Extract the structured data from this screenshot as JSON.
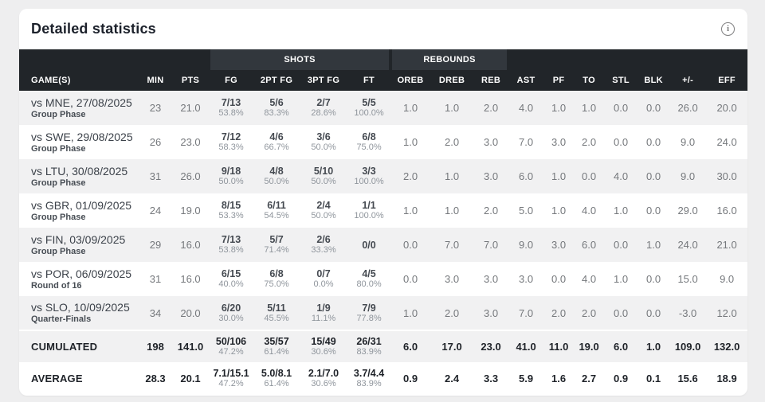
{
  "header": {
    "title": "Detailed statistics",
    "info_icon_glyph": "i"
  },
  "table": {
    "groups": {
      "shots": "SHOTS",
      "rebounds": "REBOUNDS"
    },
    "columns": {
      "games": "GAME(S)",
      "min": "MIN",
      "pts": "PTS",
      "fg": "FG",
      "fg2": "2PT FG",
      "fg3": "3PT FG",
      "ft": "FT",
      "oreb": "OREB",
      "dreb": "DREB",
      "reb": "REB",
      "ast": "AST",
      "pf": "PF",
      "to": "TO",
      "stl": "STL",
      "blk": "BLK",
      "plusminus": "+/-",
      "eff": "EFF"
    },
    "rows": [
      {
        "game": "vs MNE, 27/08/2025",
        "phase": "Group Phase",
        "min": "23",
        "pts": "21.0",
        "fg": "7/13",
        "fg_pct": "53.8%",
        "fg2": "5/6",
        "fg2_pct": "83.3%",
        "fg3": "2/7",
        "fg3_pct": "28.6%",
        "ft": "5/5",
        "ft_pct": "100.0%",
        "oreb": "1.0",
        "dreb": "1.0",
        "reb": "2.0",
        "ast": "4.0",
        "pf": "1.0",
        "to": "1.0",
        "stl": "0.0",
        "blk": "0.0",
        "pm": "26.0",
        "eff": "20.0"
      },
      {
        "game": "vs SWE, 29/08/2025",
        "phase": "Group Phase",
        "min": "26",
        "pts": "23.0",
        "fg": "7/12",
        "fg_pct": "58.3%",
        "fg2": "4/6",
        "fg2_pct": "66.7%",
        "fg3": "3/6",
        "fg3_pct": "50.0%",
        "ft": "6/8",
        "ft_pct": "75.0%",
        "oreb": "1.0",
        "dreb": "2.0",
        "reb": "3.0",
        "ast": "7.0",
        "pf": "3.0",
        "to": "2.0",
        "stl": "0.0",
        "blk": "0.0",
        "pm": "9.0",
        "eff": "24.0"
      },
      {
        "game": "vs LTU, 30/08/2025",
        "phase": "Group Phase",
        "min": "31",
        "pts": "26.0",
        "fg": "9/18",
        "fg_pct": "50.0%",
        "fg2": "4/8",
        "fg2_pct": "50.0%",
        "fg3": "5/10",
        "fg3_pct": "50.0%",
        "ft": "3/3",
        "ft_pct": "100.0%",
        "oreb": "2.0",
        "dreb": "1.0",
        "reb": "3.0",
        "ast": "6.0",
        "pf": "1.0",
        "to": "0.0",
        "stl": "4.0",
        "blk": "0.0",
        "pm": "9.0",
        "eff": "30.0"
      },
      {
        "game": "vs GBR, 01/09/2025",
        "phase": "Group Phase",
        "min": "24",
        "pts": "19.0",
        "fg": "8/15",
        "fg_pct": "53.3%",
        "fg2": "6/11",
        "fg2_pct": "54.5%",
        "fg3": "2/4",
        "fg3_pct": "50.0%",
        "ft": "1/1",
        "ft_pct": "100.0%",
        "oreb": "1.0",
        "dreb": "1.0",
        "reb": "2.0",
        "ast": "5.0",
        "pf": "1.0",
        "to": "4.0",
        "stl": "1.0",
        "blk": "0.0",
        "pm": "29.0",
        "eff": "16.0"
      },
      {
        "game": "vs FIN, 03/09/2025",
        "phase": "Group Phase",
        "min": "29",
        "pts": "16.0",
        "fg": "7/13",
        "fg_pct": "53.8%",
        "fg2": "5/7",
        "fg2_pct": "71.4%",
        "fg3": "2/6",
        "fg3_pct": "33.3%",
        "ft": "0/0",
        "ft_pct": "",
        "oreb": "0.0",
        "dreb": "7.0",
        "reb": "7.0",
        "ast": "9.0",
        "pf": "3.0",
        "to": "6.0",
        "stl": "0.0",
        "blk": "1.0",
        "pm": "24.0",
        "eff": "21.0"
      },
      {
        "game": "vs POR, 06/09/2025",
        "phase": "Round of 16",
        "min": "31",
        "pts": "16.0",
        "fg": "6/15",
        "fg_pct": "40.0%",
        "fg2": "6/8",
        "fg2_pct": "75.0%",
        "fg3": "0/7",
        "fg3_pct": "0.0%",
        "ft": "4/5",
        "ft_pct": "80.0%",
        "oreb": "0.0",
        "dreb": "3.0",
        "reb": "3.0",
        "ast": "3.0",
        "pf": "0.0",
        "to": "4.0",
        "stl": "1.0",
        "blk": "0.0",
        "pm": "15.0",
        "eff": "9.0"
      },
      {
        "game": "vs SLO, 10/09/2025",
        "phase": "Quarter-Finals",
        "min": "34",
        "pts": "20.0",
        "fg": "6/20",
        "fg_pct": "30.0%",
        "fg2": "5/11",
        "fg2_pct": "45.5%",
        "fg3": "1/9",
        "fg3_pct": "11.1%",
        "ft": "7/9",
        "ft_pct": "77.8%",
        "oreb": "1.0",
        "dreb": "2.0",
        "reb": "3.0",
        "ast": "7.0",
        "pf": "2.0",
        "to": "2.0",
        "stl": "0.0",
        "blk": "0.0",
        "pm": "-3.0",
        "eff": "12.0"
      }
    ],
    "totals": [
      {
        "label": "CUMULATED",
        "min": "198",
        "pts": "141.0",
        "fg": "50/106",
        "fg_pct": "47.2%",
        "fg2": "35/57",
        "fg2_pct": "61.4%",
        "fg3": "15/49",
        "fg3_pct": "30.6%",
        "ft": "26/31",
        "ft_pct": "83.9%",
        "oreb": "6.0",
        "dreb": "17.0",
        "reb": "23.0",
        "ast": "41.0",
        "pf": "11.0",
        "to": "19.0",
        "stl": "6.0",
        "blk": "1.0",
        "pm": "109.0",
        "eff": "132.0"
      },
      {
        "label": "AVERAGE",
        "min": "28.3",
        "pts": "20.1",
        "fg": "7.1/15.1",
        "fg_pct": "47.2%",
        "fg2": "5.0/8.1",
        "fg2_pct": "61.4%",
        "fg3": "2.1/7.0",
        "fg3_pct": "30.6%",
        "ft": "3.7/4.4",
        "ft_pct": "83.9%",
        "oreb": "0.9",
        "dreb": "2.4",
        "reb": "3.3",
        "ast": "5.9",
        "pf": "1.6",
        "to": "2.7",
        "stl": "0.9",
        "blk": "0.1",
        "pm": "15.6",
        "eff": "18.9"
      }
    ]
  },
  "colors": {
    "page_background": "#eeeeef",
    "card_background": "#ffffff",
    "header_dark": "#212529",
    "header_group_block": "#32373d",
    "row_stripe": "#f1f1f2",
    "number_text": "#75787c",
    "strong_text": "#1e2228"
  }
}
